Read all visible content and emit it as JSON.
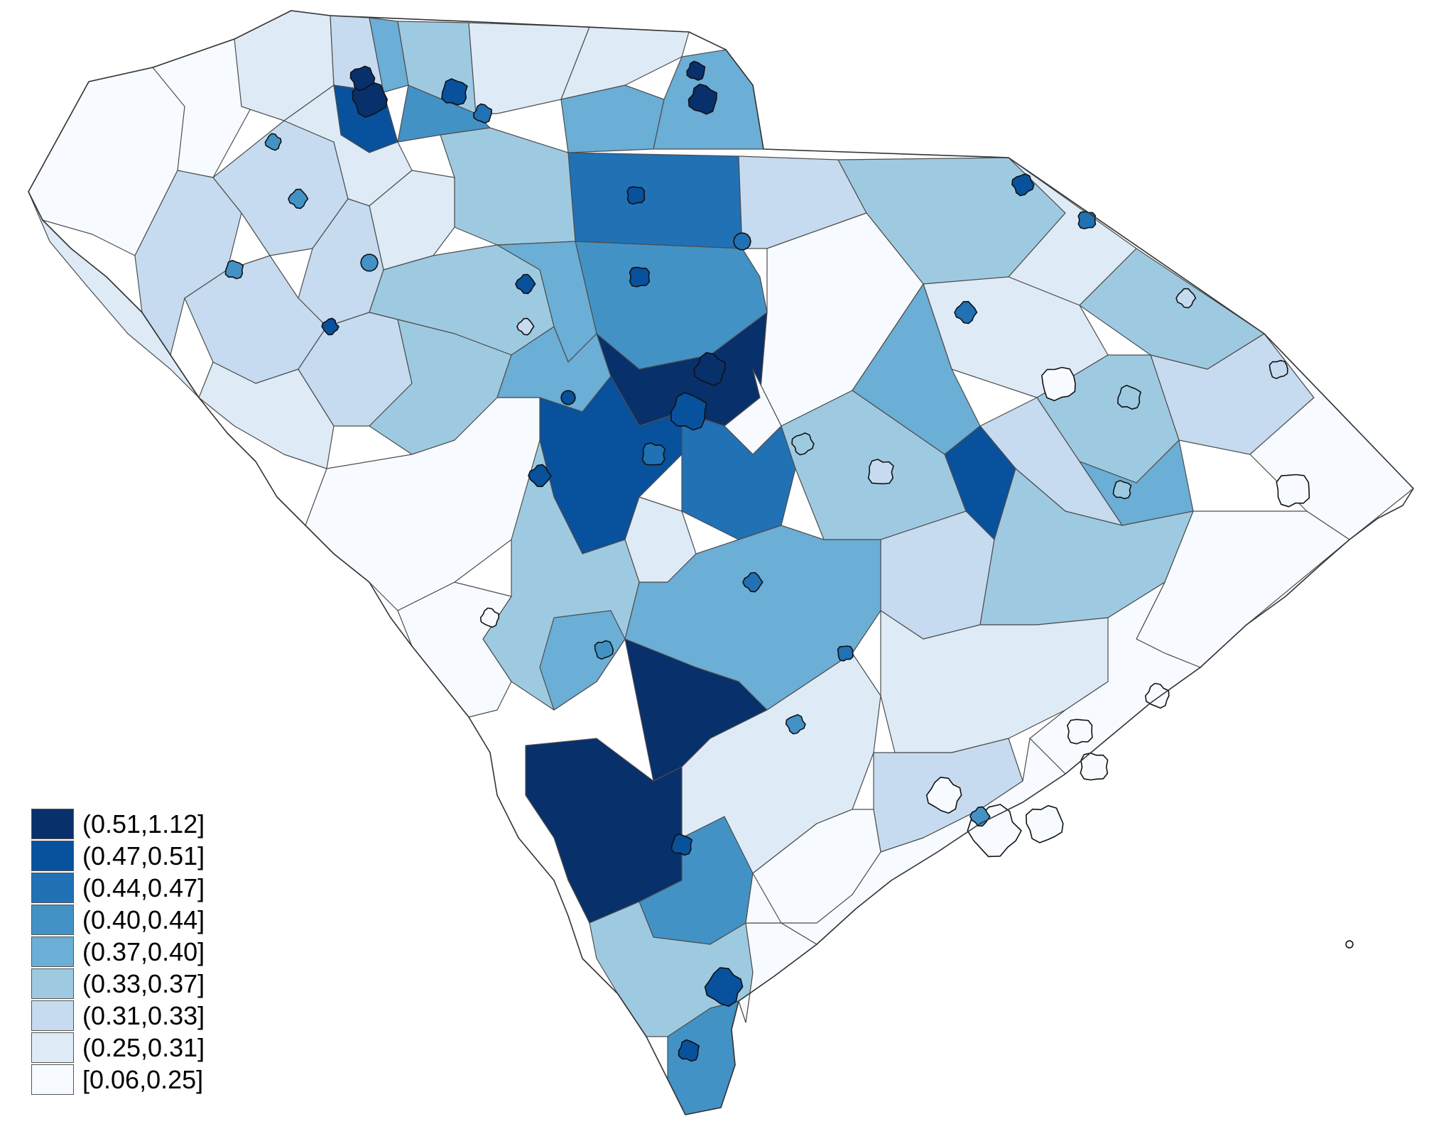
{
  "legend": {
    "items": [
      {
        "label": "(0.51,1.12]",
        "color": "#08306b"
      },
      {
        "label": "(0.47,0.51]",
        "color": "#08519c"
      },
      {
        "label": "(0.44,0.47]",
        "color": "#2171b5"
      },
      {
        "label": "(0.40,0.44]",
        "color": "#4292c6"
      },
      {
        "label": "(0.37,0.40]",
        "color": "#6baed6"
      },
      {
        "label": "(0.33,0.37]",
        "color": "#9ecae1"
      },
      {
        "label": "(0.31,0.33]",
        "color": "#c6dbef"
      },
      {
        "label": "(0.25,0.31]",
        "color": "#deebf7"
      },
      {
        "label": "[0.06,0.25]",
        "color": "#f7fbff"
      }
    ]
  },
  "map": {
    "region": "South Carolina",
    "unit": "county subdivisions with place boundaries",
    "colors": {
      "boundary": "#4d4d4d",
      "place_outline": "#111111",
      "background": "#ffffff"
    }
  }
}
